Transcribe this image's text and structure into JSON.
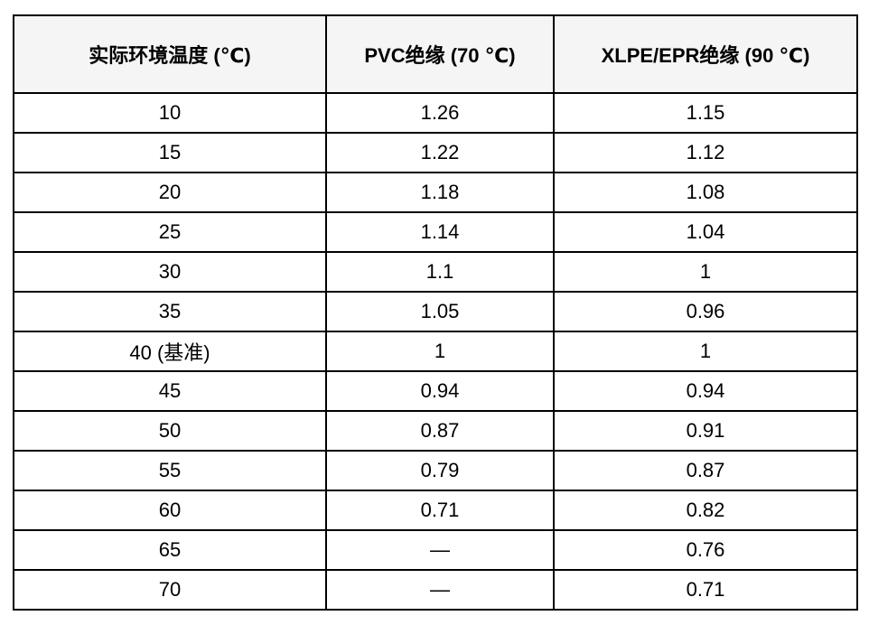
{
  "chart_data": {
    "type": "table",
    "columns": [
      "实际环境温度 (℃)",
      "PVC绝缘 (70 ℃)",
      "XLPE/EPR绝缘 (90 ℃)"
    ],
    "rows": [
      [
        "10",
        "1.26",
        "1.15"
      ],
      [
        "15",
        "1.22",
        "1.12"
      ],
      [
        "20",
        "1.18",
        "1.08"
      ],
      [
        "25",
        "1.14",
        "1.04"
      ],
      [
        "30",
        "1.1",
        "1"
      ],
      [
        "35",
        "1.05",
        "0.96"
      ],
      [
        "40 (基准)",
        "1",
        "1"
      ],
      [
        "45",
        "0.94",
        "0.94"
      ],
      [
        "50",
        "0.87",
        "0.91"
      ],
      [
        "55",
        "0.79",
        "0.87"
      ],
      [
        "60",
        "0.71",
        "0.82"
      ],
      [
        "65",
        "—",
        "0.76"
      ],
      [
        "70",
        "—",
        "0.71"
      ]
    ],
    "missing_value_symbol": "—",
    "baseline_row_label": "40 (基准)",
    "legend_position": "none",
    "grid": true
  },
  "colors": {
    "border": "#000000",
    "header_background": "#f5f5f5",
    "body_background": "#ffffff",
    "text": "#000000"
  }
}
